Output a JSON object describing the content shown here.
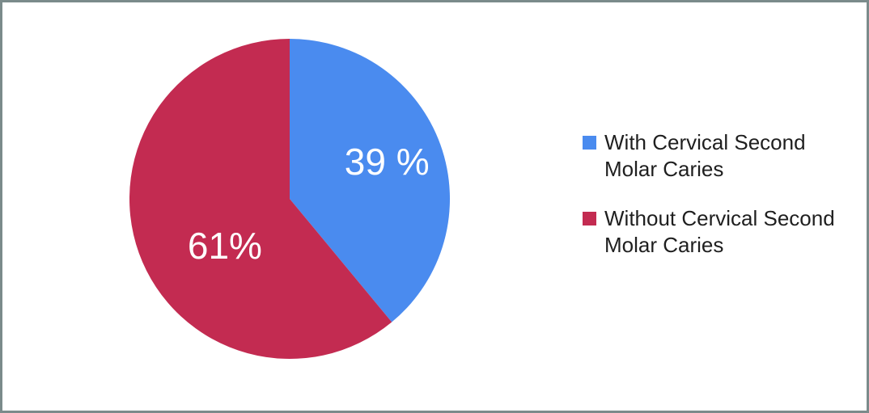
{
  "frame": {
    "background": "#ffffff",
    "border_color": "#7b8b8b"
  },
  "chart_data": {
    "type": "pie",
    "title": "",
    "slices": [
      {
        "label": "With Cervical Second Molar Caries",
        "value": 39,
        "display_label": "39 %",
        "color": "#4a8bef"
      },
      {
        "label": "Without Cervical Second Molar Caries",
        "value": 61,
        "display_label": "61%",
        "color": "#c32b51"
      }
    ],
    "start_angle_deg": 0,
    "direction": "clockwise",
    "slice_label_color": "#ffffff",
    "legend_position": "right",
    "grid": false
  }
}
